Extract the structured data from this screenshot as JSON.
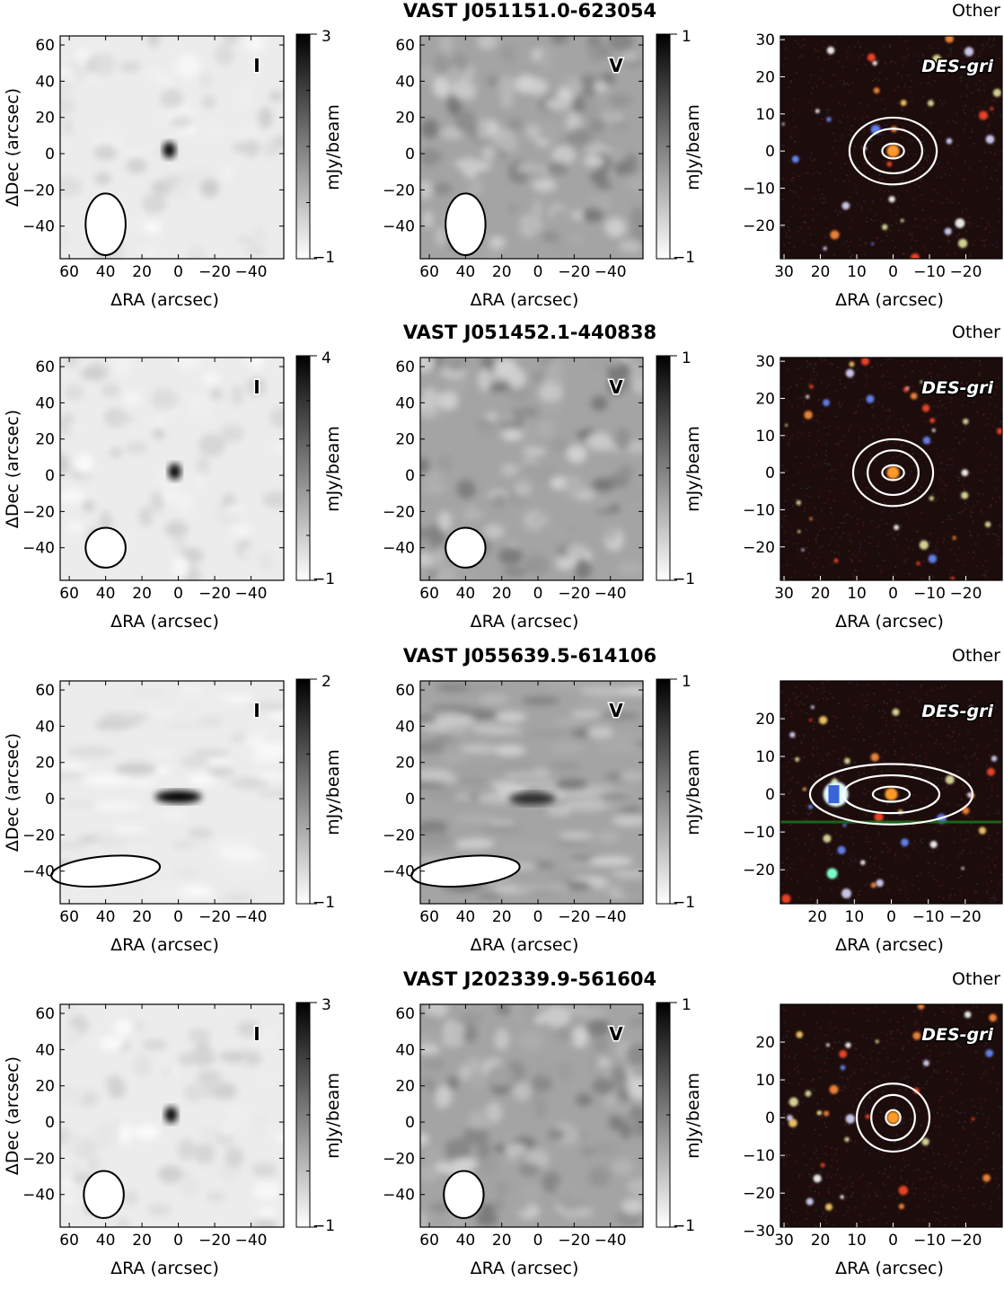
{
  "rows": [
    {
      "title": "VAST J051151.0-623054",
      "classification": "Other",
      "stokes_i": {
        "label": "I",
        "cbar_max": 3,
        "cbar_min": -1,
        "cbar_max_label": "3",
        "cbar_min_label": "−1",
        "xticks": [
          60,
          40,
          20,
          0,
          -20,
          -40
        ],
        "yticks": [
          60,
          40,
          20,
          0,
          -20,
          -40
        ],
        "source": {
          "x": 5,
          "y": 2,
          "peak": 1.0
        },
        "beam": {
          "x": 40,
          "y": -39,
          "major": 17,
          "minor": 11,
          "angle": 0
        }
      },
      "stokes_v": {
        "label": "V",
        "cbar_max": 1,
        "cbar_min": -1,
        "cbar_max_label": "1",
        "cbar_min_label": "−1",
        "xticks": [
          60,
          40,
          20,
          0,
          -20,
          -40
        ],
        "yticks": [
          60,
          40,
          20,
          0,
          -20,
          -40
        ],
        "beam": {
          "x": 40,
          "y": -39,
          "major": 17,
          "minor": 11,
          "angle": 0
        }
      },
      "optical": {
        "label": "DES-gri",
        "xticks": [
          30,
          20,
          10,
          0,
          -10,
          -20
        ],
        "yticks": [
          30,
          20,
          10,
          0,
          -10,
          -20
        ],
        "contours": [
          {
            "rx": 12,
            "ry": 9
          },
          {
            "rx": 8,
            "ry": 6
          },
          {
            "rx": 3,
            "ry": 2
          }
        ]
      }
    },
    {
      "title": "VAST J051452.1-440838",
      "classification": "Other",
      "stokes_i": {
        "label": "I",
        "cbar_max": 4,
        "cbar_min": -1,
        "cbar_max_label": "4",
        "cbar_min_label": "−1",
        "xticks": [
          60,
          40,
          20,
          0,
          -20,
          -40
        ],
        "yticks": [
          60,
          40,
          20,
          0,
          -20,
          -40
        ],
        "source": {
          "x": 2,
          "y": 2,
          "peak": 1.0
        },
        "beam": {
          "x": 40,
          "y": -40,
          "major": 11,
          "minor": 11,
          "angle": 0
        }
      },
      "stokes_v": {
        "label": "V",
        "cbar_max": 1,
        "cbar_min": -1,
        "cbar_max_label": "1",
        "cbar_min_label": "−1",
        "xticks": [
          60,
          40,
          20,
          0,
          -20,
          -40
        ],
        "yticks": [
          60,
          40,
          20,
          0,
          -20,
          -40
        ],
        "beam": {
          "x": 40,
          "y": -40,
          "major": 11,
          "minor": 11,
          "angle": 0
        }
      },
      "optical": {
        "label": "DES-gri",
        "xticks": [
          30,
          20,
          10,
          0,
          -10,
          -20
        ],
        "yticks": [
          30,
          20,
          10,
          0,
          -10,
          -20
        ],
        "contours": [
          {
            "rx": 11,
            "ry": 9
          },
          {
            "rx": 7,
            "ry": 6
          },
          {
            "rx": 3,
            "ry": 2
          }
        ]
      }
    },
    {
      "title": "VAST J055639.5-614106",
      "classification": "Other",
      "stokes_i": {
        "label": "I",
        "cbar_max": 2,
        "cbar_min": -1,
        "cbar_max_label": "2",
        "cbar_min_label": "−1",
        "xticks": [
          60,
          40,
          20,
          0,
          -20,
          -40
        ],
        "yticks": [
          60,
          40,
          20,
          0,
          -20,
          -40
        ],
        "source": {
          "x": 0,
          "y": 1,
          "peak": 1.0
        },
        "beam": {
          "x": 40,
          "y": -40,
          "major": 30,
          "minor": 9,
          "angle": -5
        }
      },
      "stokes_v": {
        "label": "V",
        "cbar_max": 1,
        "cbar_min": -1,
        "cbar_max_label": "1",
        "cbar_min_label": "−1",
        "xticks": [
          60,
          40,
          20,
          0,
          -20,
          -40
        ],
        "yticks": [
          60,
          40,
          20,
          0,
          -20,
          -40
        ],
        "source": {
          "x": 3,
          "y": 0,
          "peak": 0.5
        },
        "beam": {
          "x": 40,
          "y": -40,
          "major": 30,
          "minor": 9,
          "angle": -5
        }
      },
      "optical": {
        "label": "DES-gri",
        "xticks": [
          20,
          10,
          0,
          -10,
          -20
        ],
        "yticks": [
          20,
          10,
          0,
          -10,
          -20
        ],
        "contours": [
          {
            "rx": 22,
            "ry": 8
          },
          {
            "rx": 13,
            "ry": 5
          },
          {
            "rx": 5,
            "ry": 2
          }
        ]
      }
    },
    {
      "title": "VAST J202339.9-561604",
      "classification": "Other",
      "stokes_i": {
        "label": "I",
        "cbar_max": 3,
        "cbar_min": -1,
        "cbar_max_label": "3",
        "cbar_min_label": "−1",
        "xticks": [
          60,
          40,
          20,
          0,
          -20,
          -40
        ],
        "yticks": [
          60,
          40,
          20,
          0,
          -20,
          -40
        ],
        "source": {
          "x": 4,
          "y": 4,
          "peak": 1.0
        },
        "beam": {
          "x": 41,
          "y": -40,
          "major": 13,
          "minor": 11,
          "angle": 0
        }
      },
      "stokes_v": {
        "label": "V",
        "cbar_max": 1,
        "cbar_min": -1,
        "cbar_max_label": "1",
        "cbar_min_label": "−1",
        "xticks": [
          60,
          40,
          20,
          0,
          -20,
          -40
        ],
        "yticks": [
          60,
          40,
          20,
          0,
          -20,
          -40
        ],
        "beam": {
          "x": 41,
          "y": -40,
          "major": 13,
          "minor": 11,
          "angle": 0
        }
      },
      "optical": {
        "label": "DES-gri",
        "xticks": [
          30,
          20,
          10,
          0,
          -10,
          -20
        ],
        "yticks": [
          20,
          10,
          0,
          -10,
          -20,
          -30
        ],
        "contours": [
          {
            "rx": 10,
            "ry": 9
          },
          {
            "rx": 6,
            "ry": 6
          },
          {
            "rx": 2,
            "ry": 2
          }
        ]
      }
    }
  ],
  "axis_labels": {
    "x": "ΔRA (arcsec)",
    "y": "ΔDec (arcsec)",
    "colorbar": "mJy/beam"
  }
}
